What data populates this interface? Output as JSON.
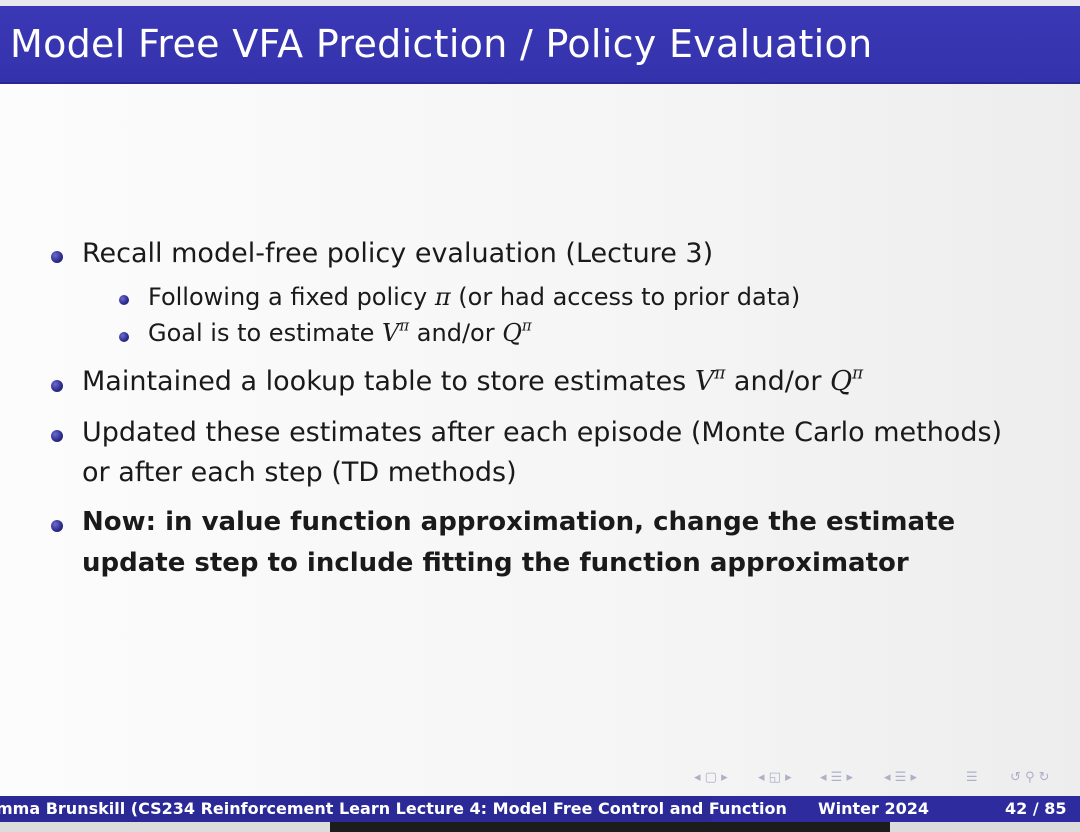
{
  "slide": {
    "title": "Model Free VFA Prediction / Policy Evaluation",
    "bullets": {
      "b1": "Recall model-free policy evaluation (Lecture 3)",
      "b1_sub1_pre": "Following a fixed policy ",
      "b1_sub1_pi": "π",
      "b1_sub1_post": " (or had access to prior data)",
      "b1_sub2_pre": "Goal is to estimate ",
      "b1_sub2_V": "V",
      "b1_sub2_pi1": "π",
      "b1_sub2_mid": " and/or ",
      "b1_sub2_Q": "Q",
      "b1_sub2_pi2": "π",
      "b2_pre": "Maintained a lookup table to store estimates ",
      "b2_V": "V",
      "b2_pi1": "π",
      "b2_mid": " and/or ",
      "b2_Q": "Q",
      "b2_pi2": "π",
      "b3_line1": "Updated these estimates after each episode (Monte Carlo methods)",
      "b3_line2": "or after each step (TD methods)",
      "b4_line1": "Now: in value function approximation, change the estimate",
      "b4_line2": "update step to include fitting the function approximator"
    }
  },
  "footer": {
    "left": "mma Brunskill (CS234 Reinforcement Learn Lecture 4: Model Free Control and Function",
    "middle": "Winter 2024",
    "page": "42 / 85"
  },
  "nav": {
    "icons": [
      "nav-frame-icon",
      "nav-subsection-icon",
      "nav-section-icon",
      "nav-slide-icon",
      "nav-outline-icon",
      "nav-search-icon"
    ]
  }
}
